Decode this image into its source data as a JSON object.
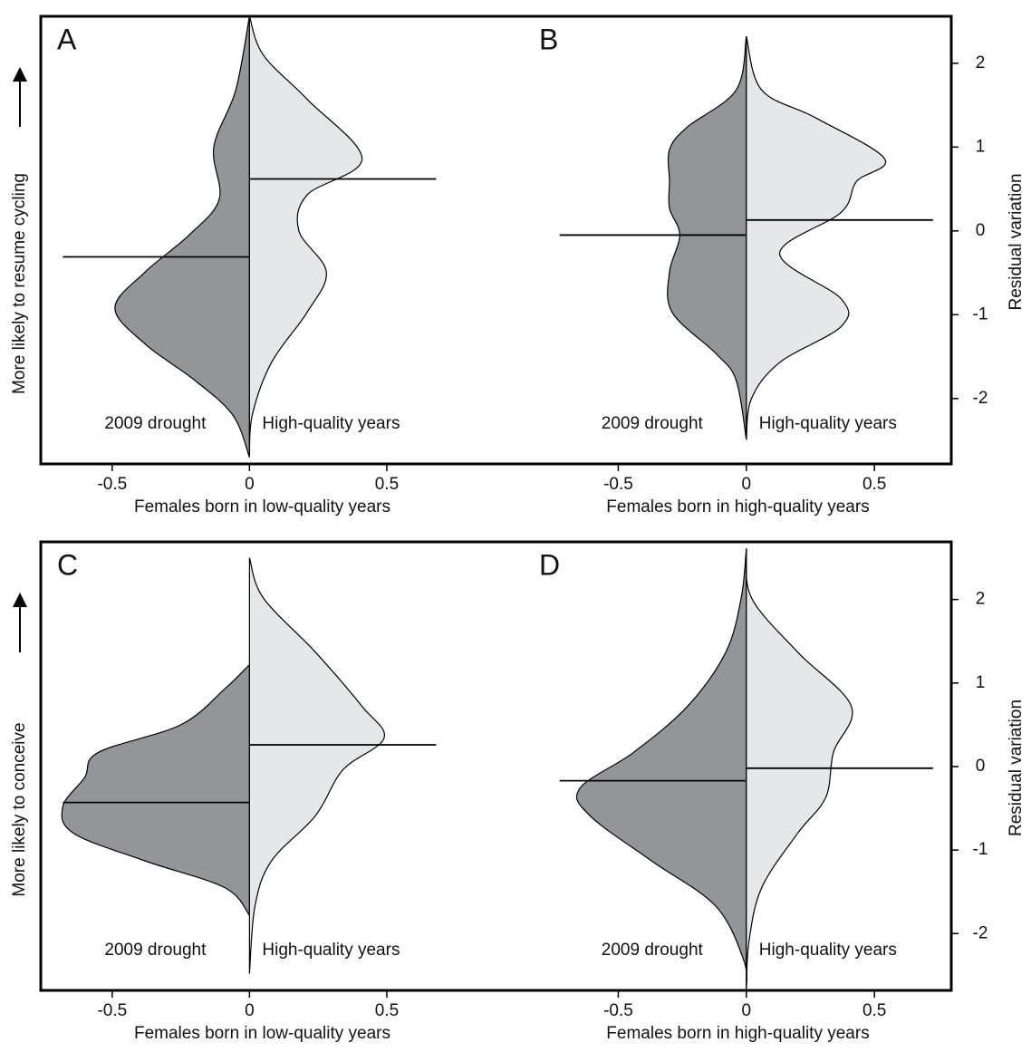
{
  "chart_data": [
    {
      "type": "violin",
      "title": "A",
      "xlabel": "Females born in low-quality years",
      "ylabel": "More likely to resume cycling",
      "ylabel_side": "left",
      "xlim": [
        -0.76,
        0.84
      ],
      "xticks": [
        -0.5,
        0,
        0.5
      ],
      "ylim": [
        -2.78,
        2.56
      ],
      "series": [
        {
          "name": "2009 drought",
          "color": "#939598",
          "side": "left",
          "mean": -0.31,
          "y": [
            2.56,
            1.68,
            1.0,
            0.38,
            -0.05,
            -0.49,
            -0.92,
            -1.35,
            -1.78,
            -2.2,
            -2.7
          ],
          "values": [
            0,
            0.05,
            0.13,
            0.11,
            0.22,
            0.38,
            0.49,
            0.38,
            0.2,
            0.06,
            0
          ]
        },
        {
          "name": "High-quality years",
          "color": "#e6e7e8",
          "side": "right",
          "mean": 0.62,
          "y": [
            2.56,
            2.1,
            1.57,
            0.86,
            0.43,
            0,
            -0.49,
            -0.97,
            -1.57,
            -2.2,
            -2.7
          ],
          "values": [
            0,
            0.05,
            0.21,
            0.41,
            0.21,
            0.18,
            0.28,
            0.21,
            0.08,
            0.01,
            0
          ]
        }
      ]
    },
    {
      "type": "violin",
      "title": "B",
      "xlabel": "Females born in high-quality years",
      "ylabel": "Residual variation",
      "ylabel_side": "right",
      "xlim": [
        -0.88,
        0.8
      ],
      "xticks": [
        -0.5,
        0,
        0.5
      ],
      "ylim": [
        -2.78,
        2.56
      ],
      "yticks": [
        -2,
        -1,
        0,
        1,
        2
      ],
      "series": [
        {
          "name": "2009 drought",
          "color": "#939598",
          "side": "left",
          "mean": -0.05,
          "y": [
            2.32,
            1.68,
            1.24,
            0.97,
            0.59,
            0.27,
            -0.05,
            -0.49,
            -0.97,
            -1.46,
            -1.78,
            -2.49
          ],
          "values": [
            0,
            0.04,
            0.23,
            0.3,
            0.3,
            0.3,
            0.26,
            0.3,
            0.29,
            0.12,
            0.04,
            0
          ]
        },
        {
          "name": "High-quality years",
          "color": "#e6e7e8",
          "side": "right",
          "mean": 0.13,
          "y": [
            2.32,
            1.68,
            1.35,
            0.86,
            0.59,
            0.22,
            -0.27,
            -0.81,
            -1.14,
            -1.57,
            -2.0,
            -2.49
          ],
          "values": [
            0,
            0.06,
            0.27,
            0.54,
            0.43,
            0.37,
            0.13,
            0.37,
            0.37,
            0.13,
            0.02,
            0
          ]
        }
      ]
    },
    {
      "type": "violin",
      "title": "C",
      "xlabel": "Females born in low-quality years",
      "ylabel": "More likely to conceive",
      "ylabel_side": "left",
      "xlim": [
        -0.76,
        0.84
      ],
      "xticks": [
        -0.5,
        0,
        0.5
      ],
      "ylim": [
        -2.68,
        2.69
      ],
      "series": [
        {
          "name": "2009 drought",
          "color": "#939598",
          "side": "left",
          "mean": -0.43,
          "y": [
            1.22,
            0.93,
            0.5,
            0.17,
            -0.13,
            -0.48,
            -0.8,
            -1.13,
            -1.45,
            -1.78
          ],
          "values": [
            0,
            0.09,
            0.25,
            0.55,
            0.6,
            0.68,
            0.64,
            0.38,
            0.09,
            0
          ]
        },
        {
          "name": "High-quality years",
          "color": "#e6e7e8",
          "side": "right",
          "mean": 0.26,
          "y": [
            2.5,
            2.02,
            1.37,
            0.72,
            0.34,
            -0.04,
            -0.59,
            -1.13,
            -1.67,
            -2.48
          ],
          "values": [
            0,
            0.05,
            0.24,
            0.41,
            0.49,
            0.34,
            0.24,
            0.08,
            0.02,
            0
          ]
        }
      ]
    },
    {
      "type": "violin",
      "title": "D",
      "xlabel": "Females born in high-quality years",
      "ylabel": "Residual variation",
      "ylabel_side": "right",
      "xlim": [
        -0.88,
        0.8
      ],
      "xticks": [
        -0.5,
        0,
        0.5
      ],
      "ylim": [
        -2.68,
        2.69
      ],
      "yticks": [
        -2,
        -1,
        0,
        1,
        2
      ],
      "series": [
        {
          "name": "2009 drought",
          "color": "#939598",
          "side": "left",
          "mean": -0.17,
          "y": [
            2.61,
            2.02,
            1.37,
            0.72,
            0.17,
            -0.26,
            -0.59,
            -1.13,
            -1.67,
            -2.32,
            -2.68
          ],
          "values": [
            0,
            0.02,
            0.08,
            0.23,
            0.44,
            0.65,
            0.61,
            0.37,
            0.12,
            0.01,
            0
          ]
        },
        {
          "name": "High-quality years",
          "color": "#e6e7e8",
          "side": "right",
          "mean": -0.02,
          "y": [
            2.61,
            2.02,
            1.37,
            0.72,
            0.17,
            -0.37,
            -0.8,
            -1.45,
            -2.1,
            -2.68
          ],
          "values": [
            0,
            0.02,
            0.2,
            0.41,
            0.34,
            0.31,
            0.2,
            0.06,
            0.01,
            0
          ]
        }
      ]
    }
  ]
}
